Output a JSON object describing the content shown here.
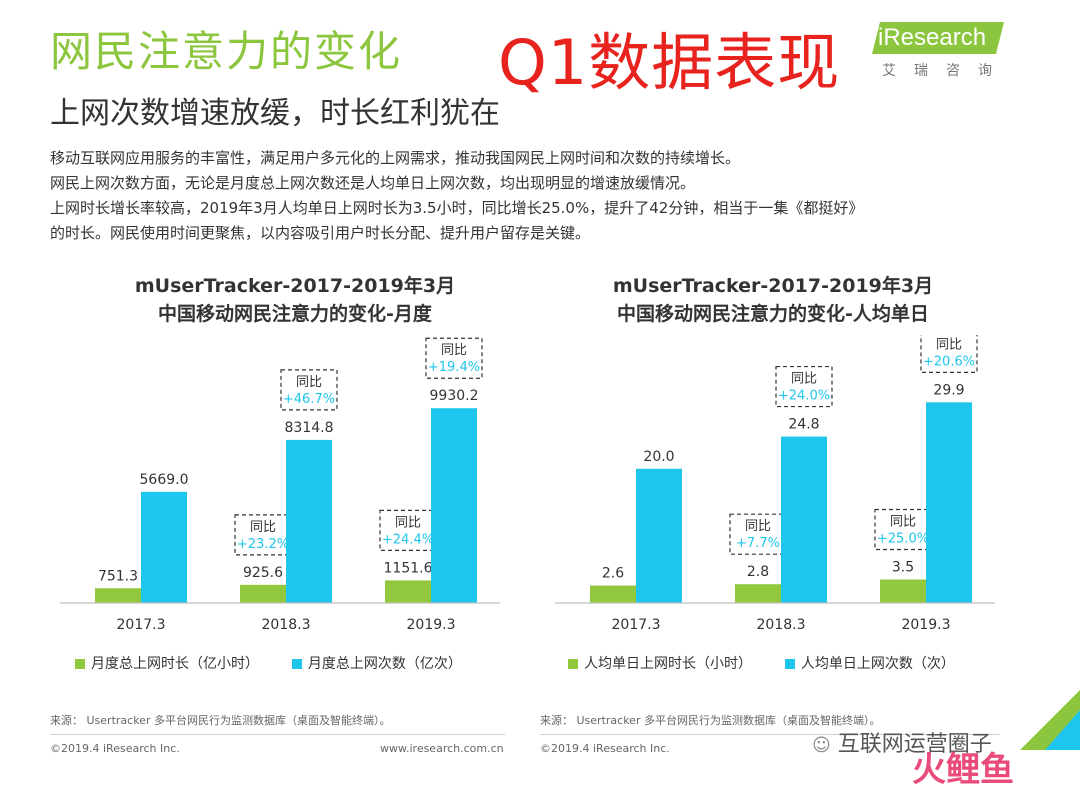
{
  "header": {
    "title": "网民注意力的变化",
    "overlay_text": "Q1数据表现",
    "subtitle": "上网次数增速放缓，时长红利犹在",
    "logo": {
      "brand": "iResearch",
      "cn": "艾瑞咨询"
    }
  },
  "description": [
    "移动互联网应用服务的丰富性，满足用户多元化的上网需求，推动我国网民上网时间和次数的持续增长。",
    "网民上网次数方面，无论是月度总上网次数还是人均单日上网次数，均出现明显的增速放缓情况。",
    "上网时长增长率较高，2019年3月人均单日上网时长为3.5小时，同比增长25.0%，提升了42分钟，相当于一集《都挺好》",
    "的时长。网民使用时间更聚焦，以内容吸引用户时长分配、提升用户留存是关键。"
  ],
  "colors": {
    "green": "#92c83e",
    "blue": "#1ec5ec",
    "yoy_text": "#1ec5ec"
  },
  "chart_data": [
    {
      "type": "bar",
      "title": "mUserTracker-2017-2019年3月",
      "subtitle": "中国移动网民注意力的变化-月度",
      "categories": [
        "2017.3",
        "2018.3",
        "2019.3"
      ],
      "series": [
        {
          "name": "月度总上网时长（亿小时）",
          "values": [
            751.3,
            925.6,
            1151.6
          ],
          "labels": [
            "751.3",
            "925.6",
            "1151.6"
          ]
        },
        {
          "name": "月度总上网次数（亿次）",
          "values": [
            5669.0,
            8314.8,
            9930.2
          ],
          "labels": [
            "5669.0",
            "8314.8",
            "9930.2"
          ]
        }
      ],
      "yoy": {
        "label": "同比",
        "series0": [
          null,
          "+23.2%",
          "+24.4%"
        ],
        "series1": [
          null,
          "+46.7%",
          "+19.4%"
        ]
      },
      "ylim": [
        0,
        13000
      ]
    },
    {
      "type": "bar",
      "title": "mUserTracker-2017-2019年3月",
      "subtitle": "中国移动网民注意力的变化-人均单日",
      "categories": [
        "2017.3",
        "2018.3",
        "2019.3"
      ],
      "series": [
        {
          "name": "人均单日上网时长（小时）",
          "values": [
            2.6,
            2.8,
            3.5
          ],
          "labels": [
            "2.6",
            "2.8",
            "3.5"
          ]
        },
        {
          "name": "人均单日上网次数（次）",
          "values": [
            20.0,
            24.8,
            29.9
          ],
          "labels": [
            "20.0",
            "24.8",
            "29.9"
          ]
        }
      ],
      "yoy": {
        "label": "同比",
        "series0": [
          null,
          "+7.7%",
          "+25.0%"
        ],
        "series1": [
          null,
          "+24.0%",
          "+20.6%"
        ]
      },
      "ylim": [
        0,
        38
      ]
    }
  ],
  "source": "来源： Usertracker 多平台网民行为监测数据库（桌面及智能终端）。",
  "footer": {
    "copyright": "©2019.4 iResearch Inc.",
    "url": "www.iresearch.com.cn"
  },
  "watermark": {
    "line1": "互联网运营圈子",
    "line2": "火鲤鱼"
  }
}
